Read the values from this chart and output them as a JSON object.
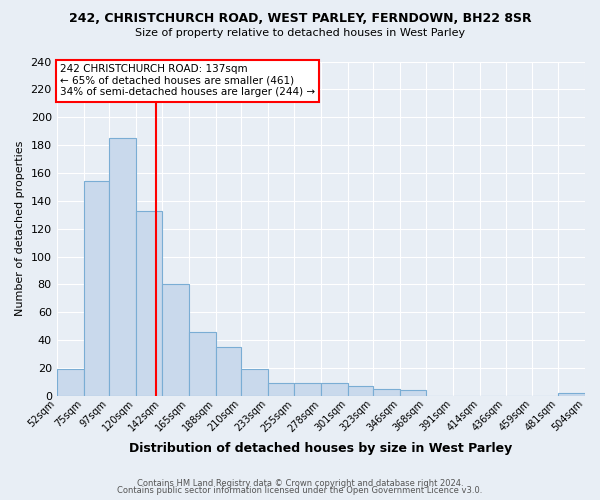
{
  "title1": "242, CHRISTCHURCH ROAD, WEST PARLEY, FERNDOWN, BH22 8SR",
  "title2": "Size of property relative to detached houses in West Parley",
  "xlabel": "Distribution of detached houses by size in West Parley",
  "ylabel": "Number of detached properties",
  "bin_labels": [
    "52sqm",
    "75sqm",
    "97sqm",
    "120sqm",
    "142sqm",
    "165sqm",
    "188sqm",
    "210sqm",
    "233sqm",
    "255sqm",
    "278sqm",
    "301sqm",
    "323sqm",
    "346sqm",
    "368sqm",
    "391sqm",
    "414sqm",
    "436sqm",
    "459sqm",
    "481sqm",
    "504sqm"
  ],
  "bin_edges": [
    52,
    75,
    97,
    120,
    142,
    165,
    188,
    210,
    233,
    255,
    278,
    301,
    323,
    346,
    368,
    391,
    414,
    436,
    459,
    481,
    504
  ],
  "bar_heights": [
    19,
    154,
    185,
    133,
    80,
    46,
    35,
    19,
    9,
    9,
    9,
    7,
    5,
    4,
    0,
    0,
    0,
    0,
    0,
    2
  ],
  "bar_color": "#c9d9ec",
  "bar_edge_color": "#7aadd4",
  "vline_x": 137,
  "vline_color": "red",
  "annotation_line1": "242 CHRISTCHURCH ROAD: 137sqm",
  "annotation_line2": "← 65% of detached houses are smaller (461)",
  "annotation_line3": "34% of semi-detached houses are larger (244) →",
  "annotation_box_edge_color": "red",
  "background_color": "#e8eef5",
  "plot_bg_color": "#e8eef5",
  "footer1": "Contains HM Land Registry data © Crown copyright and database right 2024.",
  "footer2": "Contains public sector information licensed under the Open Government Licence v3.0.",
  "ylim": [
    0,
    240
  ],
  "yticks": [
    0,
    20,
    40,
    60,
    80,
    100,
    120,
    140,
    160,
    180,
    200,
    220,
    240
  ]
}
